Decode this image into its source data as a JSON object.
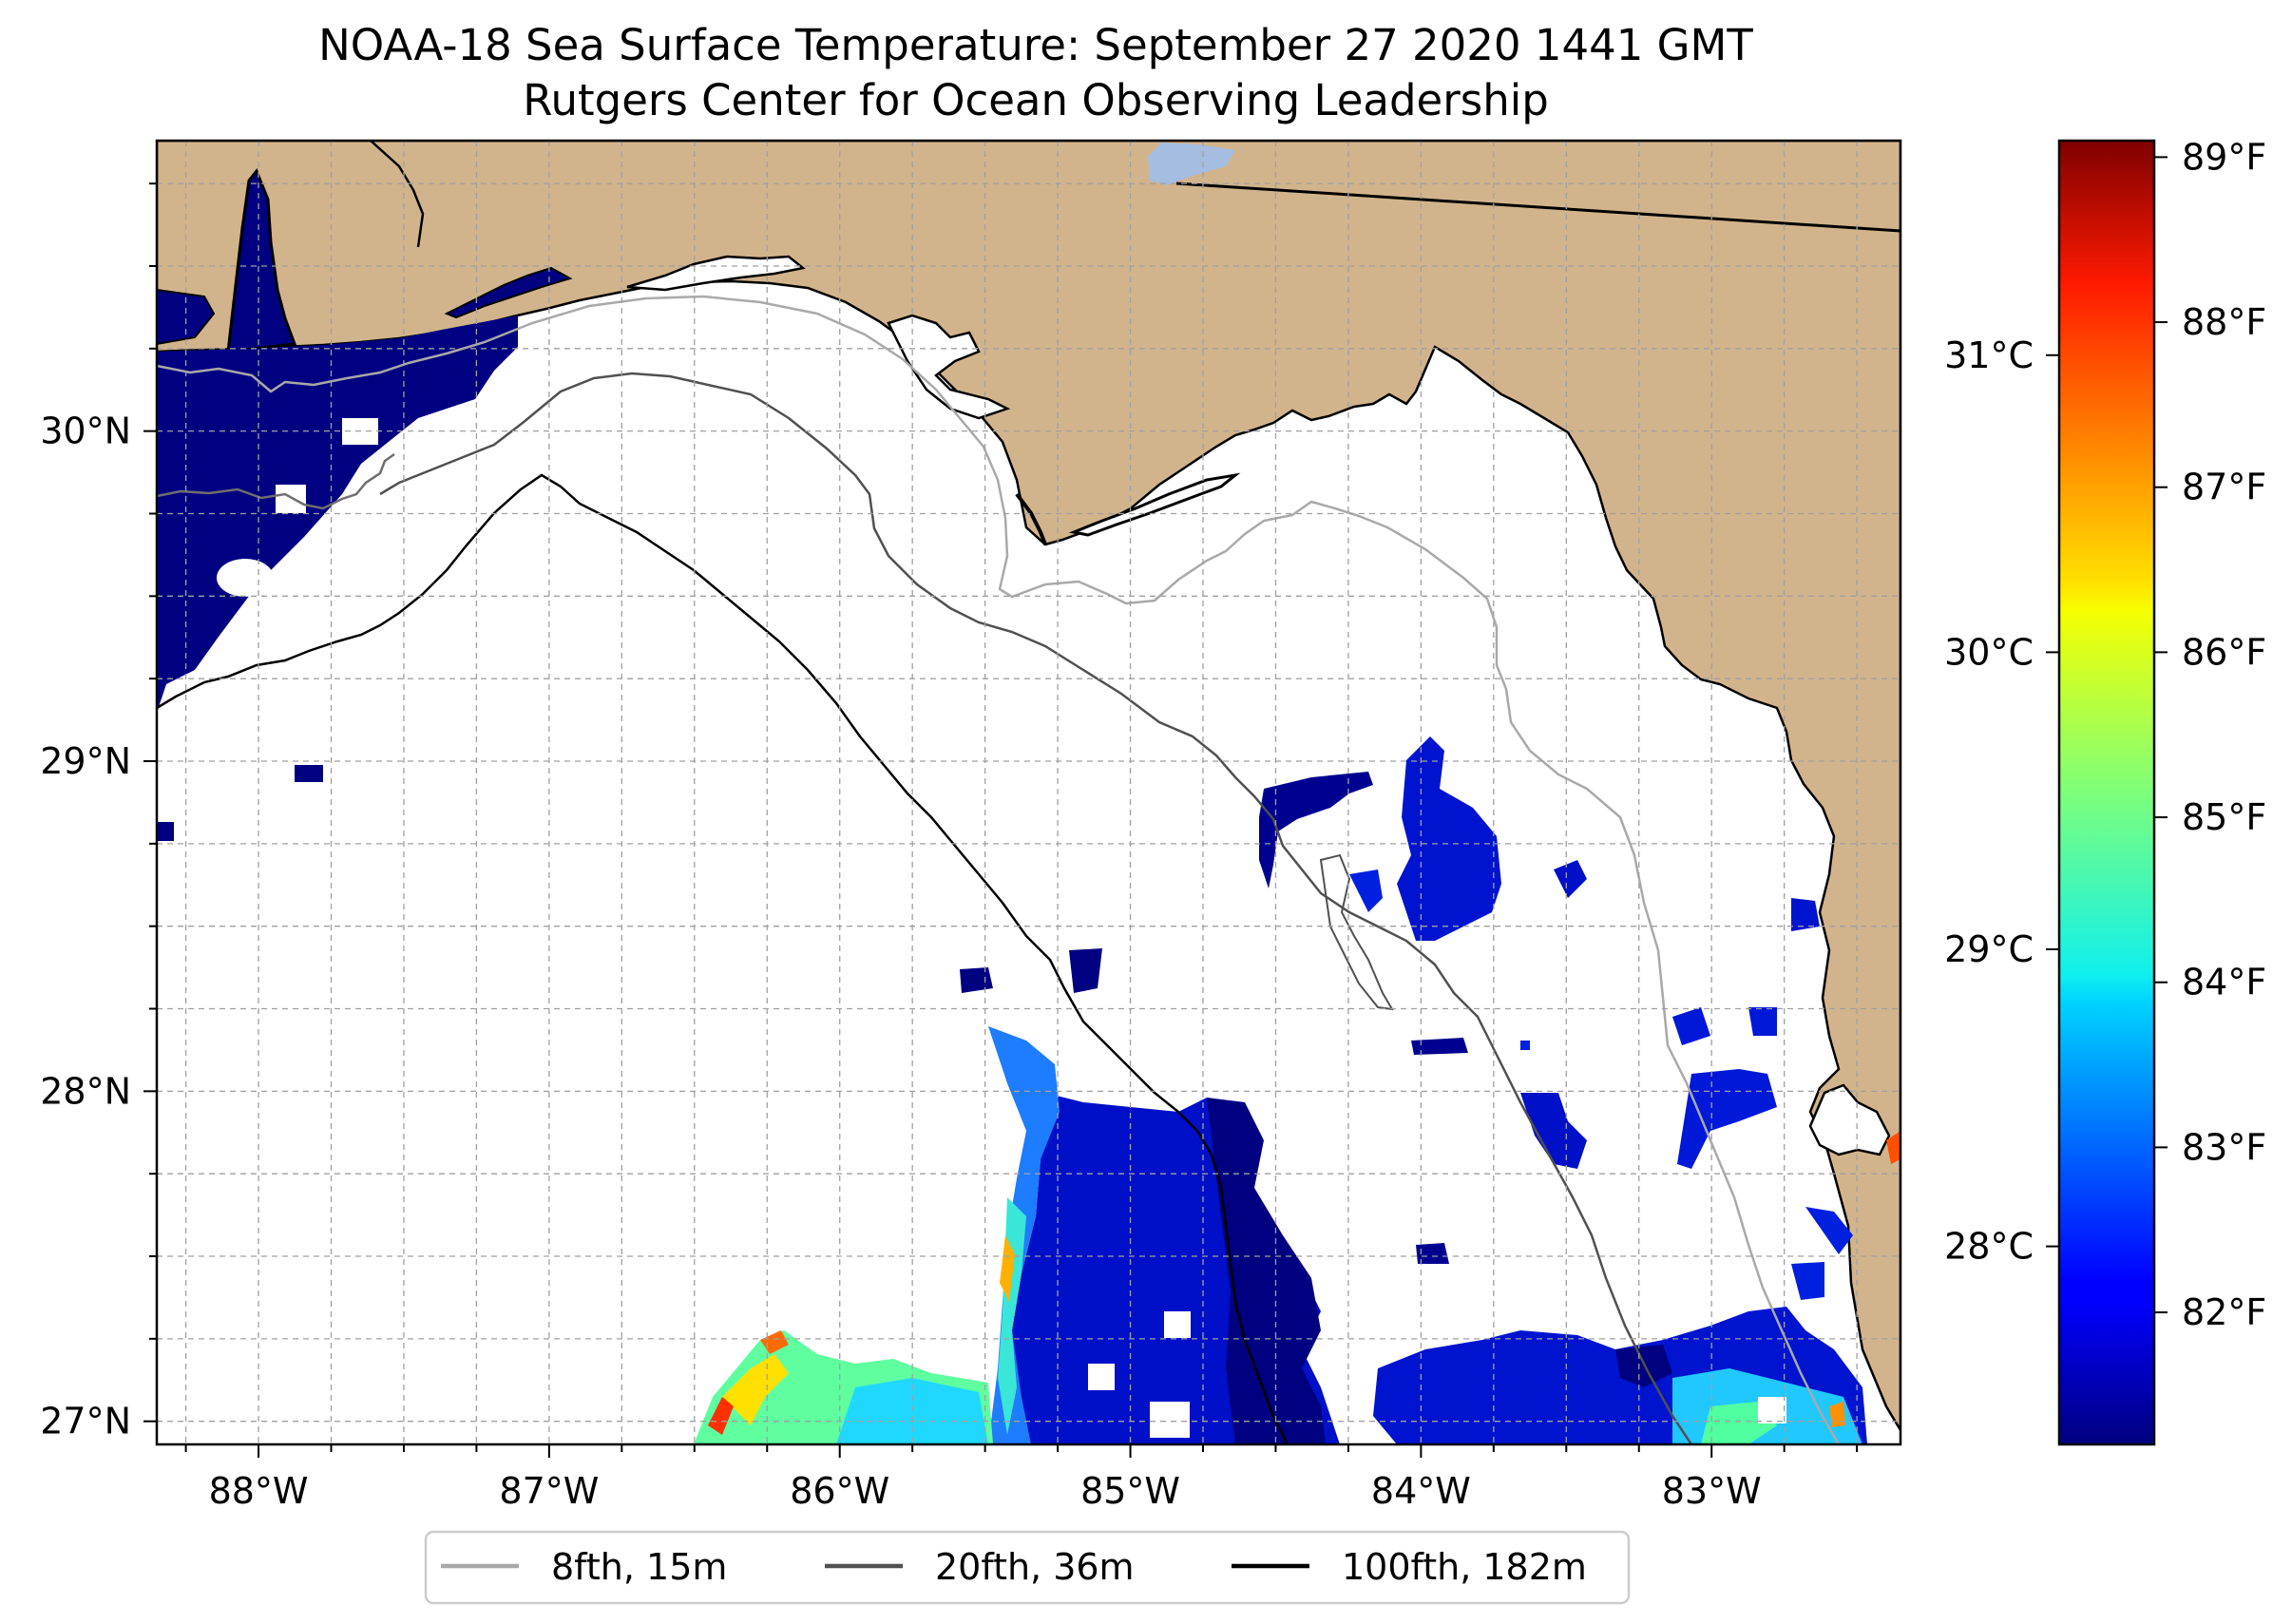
{
  "title": {
    "line1": "NOAA-18 Sea Surface Temperature: September 27 2020 1441 GMT",
    "line2": "Rutgers Center for Ocean Observing Leadership"
  },
  "map": {
    "lon_range": [
      -88.35,
      -82.35
    ],
    "lat_range": [
      26.93,
      30.88
    ],
    "lon_ticks": [
      {
        "value": -88,
        "label": "88°W"
      },
      {
        "value": -87,
        "label": "87°W"
      },
      {
        "value": -86,
        "label": "86°W"
      },
      {
        "value": -85,
        "label": "85°W"
      },
      {
        "value": -84,
        "label": "84°W"
      },
      {
        "value": -83,
        "label": "83°W"
      }
    ],
    "lat_ticks": [
      {
        "value": 27,
        "label": "27°N"
      },
      {
        "value": 28,
        "label": "28°N"
      },
      {
        "value": 29,
        "label": "29°N"
      },
      {
        "value": 30,
        "label": "30°N"
      }
    ],
    "gridlines": "dashed, every 0.25°",
    "land_color": "#d2b48c",
    "ocean_color": "#ffffff"
  },
  "colorbar": {
    "colormap": "jet",
    "celsius_ticks": [
      {
        "value": 28,
        "label": "28°C"
      },
      {
        "value": 29,
        "label": "29°C"
      },
      {
        "value": 30,
        "label": "30°C"
      },
      {
        "value": 31,
        "label": "31°C"
      }
    ],
    "fahrenheit_ticks": [
      {
        "value": 82,
        "label": "82°F"
      },
      {
        "value": 83,
        "label": "83°F"
      },
      {
        "value": 84,
        "label": "84°F"
      },
      {
        "value": 85,
        "label": "85°F"
      },
      {
        "value": 86,
        "label": "86°F"
      },
      {
        "value": 87,
        "label": "87°F"
      },
      {
        "value": 88,
        "label": "88°F"
      },
      {
        "value": 89,
        "label": "89°F"
      }
    ],
    "range_f": [
      81.2,
      89.1
    ]
  },
  "legend": {
    "items": [
      {
        "label": "8fth, 15m",
        "color": "#a9a9a9"
      },
      {
        "label": "20fth, 36m",
        "color": "#505050"
      },
      {
        "label": "100fth, 182m",
        "color": "#000000"
      }
    ]
  }
}
